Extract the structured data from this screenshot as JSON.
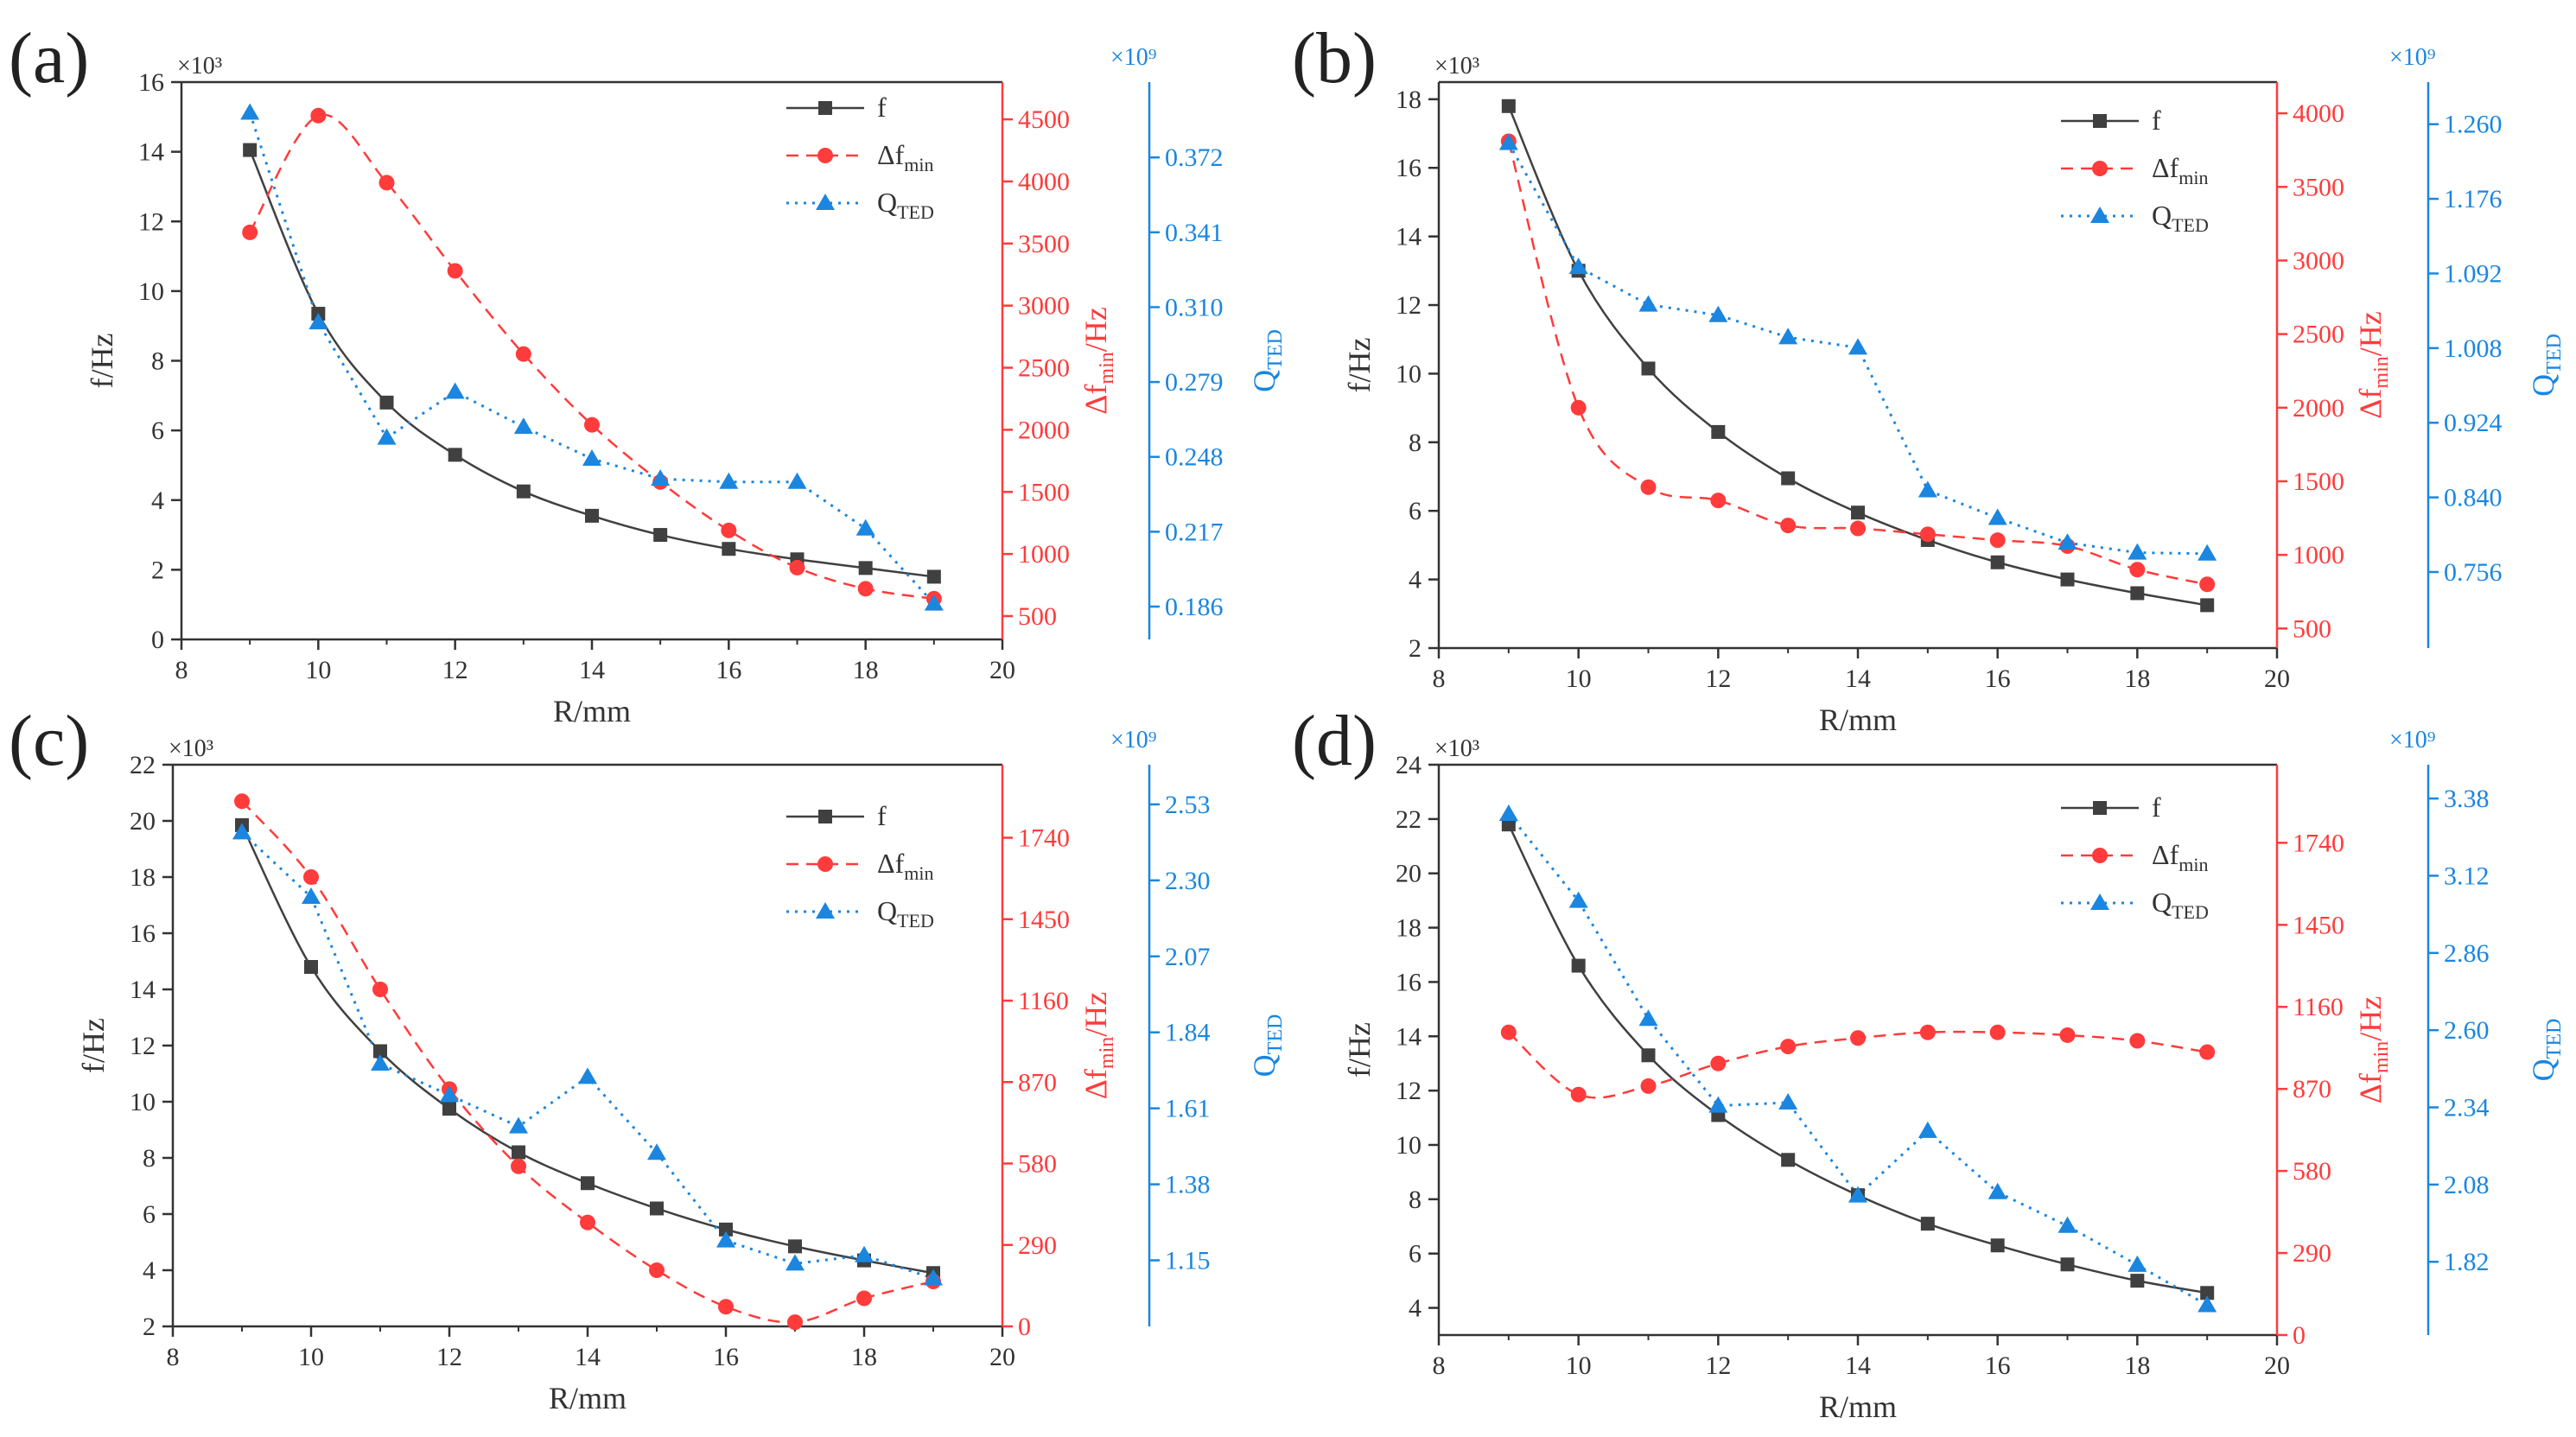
{
  "figure": {
    "description_panels": [
      "(a)",
      "(b)",
      "(c)",
      "(d)"
    ]
  },
  "colors": {
    "f": "#404040",
    "dfmin": "#ff3b3b",
    "qted": "#1a86e0",
    "axis": "#333333"
  },
  "legend": {
    "f": "f",
    "dfmin_main": "Δf",
    "dfmin_sub": "min",
    "qted_main": "Q",
    "qted_sub": "TED"
  },
  "chart_data": [
    {
      "panel": "(a)",
      "type": "line",
      "xlabel": "R/mm",
      "ylabel_left": "f/Hz",
      "ylabel_right1_main": "Δf",
      "ylabel_right1_sub": "min",
      "ylabel_right1_unit": "/Hz",
      "ylabel_right2_main": "Q",
      "ylabel_right2_sub": "TED",
      "left_multiplier": "×10³",
      "right2_multiplier": "×10⁹",
      "xlim": [
        8,
        20
      ],
      "xticks": [
        8,
        10,
        12,
        14,
        16,
        18,
        20
      ],
      "left_ylim": [
        0,
        16
      ],
      "left_yticks": [
        0,
        2,
        4,
        6,
        8,
        10,
        12,
        14,
        16
      ],
      "right1_ylim": [
        312,
        4800
      ],
      "right1_yticks": [
        500,
        1000,
        1500,
        2000,
        2500,
        3000,
        3500,
        4000,
        4500
      ],
      "right2_ylim": [
        0.1724,
        0.4032
      ],
      "right2_yticks": [
        "0.186",
        "0.217",
        "0.248",
        "0.279",
        "0.310",
        "0.341",
        "0.372"
      ],
      "x": [
        9,
        10,
        11,
        12,
        13,
        14,
        15,
        16,
        17,
        18,
        19
      ],
      "series": [
        {
          "name": "f",
          "values": [
            14.05,
            9.35,
            6.8,
            5.3,
            4.25,
            3.55,
            3.0,
            2.6,
            2.3,
            2.05,
            1.8
          ]
        },
        {
          "name": "Δfmin",
          "values": [
            3590,
            4530,
            3990,
            3280,
            2610,
            2040,
            1580,
            1190,
            890,
            720,
            640
          ]
        },
        {
          "name": "QTED",
          "values": [
            0.3905,
            0.3037,
            0.2559,
            0.2749,
            0.2604,
            0.2472,
            0.2389,
            0.2376,
            0.2376,
            0.2183,
            0.1872
          ]
        }
      ]
    },
    {
      "panel": "(b)",
      "type": "line",
      "xlabel": "R/mm",
      "ylabel_left": "f/Hz",
      "ylabel_right1_main": "Δf",
      "ylabel_right1_sub": "min",
      "ylabel_right1_unit": "/Hz",
      "ylabel_right2_main": "Q",
      "ylabel_right2_sub": "TED",
      "left_multiplier": "×10³",
      "right2_multiplier": "×10⁹",
      "xlim": [
        8,
        20
      ],
      "xticks": [
        8,
        10,
        12,
        14,
        16,
        18,
        20
      ],
      "left_ylim": [
        2,
        18.5
      ],
      "left_yticks": [
        2,
        4,
        6,
        8,
        10,
        12,
        14,
        16,
        18
      ],
      "right1_ylim": [
        367,
        4212
      ],
      "right1_yticks": [
        500,
        1000,
        1500,
        2000,
        2500,
        3000,
        3500,
        4000
      ],
      "right2_ylim": [
        0.6704,
        1.3074
      ],
      "right2_yticks": [
        "0.756",
        "0.840",
        "0.924",
        "1.008",
        "1.092",
        "1.176",
        "1.260"
      ],
      "x": [
        9,
        10,
        11,
        12,
        13,
        14,
        15,
        16,
        17,
        18,
        19
      ],
      "series": [
        {
          "name": "f",
          "values": [
            17.8,
            13.0,
            10.15,
            8.3,
            6.95,
            5.95,
            5.15,
            4.5,
            4.0,
            3.6,
            3.25
          ]
        },
        {
          "name": "Δfmin",
          "values": [
            3810,
            2000,
            1460,
            1370,
            1200,
            1180,
            1140,
            1100,
            1060,
            900,
            800
          ]
        },
        {
          "name": "QTED",
          "values": [
            1.2387,
            1.0992,
            1.0569,
            1.0451,
            1.0202,
            1.0085,
            0.8479,
            0.8168,
            0.7889,
            0.7778,
            0.7766
          ]
        }
      ]
    },
    {
      "panel": "(c)",
      "type": "line",
      "xlabel": "R/mm",
      "ylabel_left": "f/Hz",
      "ylabel_right1_main": "Δf",
      "ylabel_right1_sub": "min",
      "ylabel_right1_unit": "/Hz",
      "ylabel_right2_main": "Q",
      "ylabel_right2_sub": "TED",
      "left_multiplier": "×10³",
      "right2_multiplier": "×10⁹",
      "xlim": [
        8,
        20
      ],
      "xticks": [
        8,
        10,
        12,
        14,
        16,
        18,
        20
      ],
      "left_ylim": [
        2,
        22
      ],
      "left_yticks": [
        2,
        4,
        6,
        8,
        10,
        12,
        14,
        16,
        18,
        20,
        22
      ],
      "right1_ylim": [
        0,
        2000
      ],
      "right1_yticks": [
        0,
        290,
        580,
        870,
        1160,
        1450,
        1740
      ],
      "right2_ylim": [
        0.95,
        2.65
      ],
      "right2_yticks": [
        "1.15",
        "1.38",
        "1.61",
        "1.84",
        "2.07",
        "2.30",
        "2.53"
      ],
      "x": [
        9,
        10,
        11,
        12,
        13,
        14,
        15,
        16,
        17,
        18,
        19
      ],
      "series": [
        {
          "name": "f",
          "values": [
            19.85,
            14.8,
            11.8,
            9.75,
            8.2,
            7.1,
            6.2,
            5.45,
            4.85,
            4.35,
            3.9
          ]
        },
        {
          "name": "Δfmin",
          "values": [
            1870,
            1600,
            1200,
            845,
            570,
            370,
            200,
            70,
            15,
            100,
            160
          ]
        },
        {
          "name": "QTED",
          "values": [
            2.445,
            2.25,
            1.745,
            1.65,
            1.555,
            1.705,
            1.475,
            1.21,
            1.14,
            1.165,
            1.095
          ]
        }
      ]
    },
    {
      "panel": "(d)",
      "type": "line",
      "xlabel": "R/mm",
      "ylabel_left": "f/Hz",
      "ylabel_right1_main": "Δf",
      "ylabel_right1_sub": "min",
      "ylabel_right1_unit": "/Hz",
      "ylabel_right2_main": "Q",
      "ylabel_right2_sub": "TED",
      "left_multiplier": "×10³",
      "right2_multiplier": "×10⁹",
      "xlim": [
        8,
        20
      ],
      "xticks": [
        8,
        10,
        12,
        14,
        16,
        18,
        20
      ],
      "left_ylim": [
        3,
        24
      ],
      "left_yticks": [
        4,
        6,
        8,
        10,
        12,
        14,
        16,
        18,
        20,
        22,
        24
      ],
      "right1_ylim": [
        0,
        2016
      ],
      "right1_yticks": [
        0,
        290,
        580,
        870,
        1160,
        1450,
        1740
      ],
      "right2_ylim": [
        1.5734,
        3.4938
      ],
      "right2_yticks": [
        "1.82",
        "2.08",
        "2.34",
        "2.60",
        "2.86",
        "3.12",
        "3.38"
      ],
      "x": [
        9,
        10,
        11,
        12,
        13,
        14,
        15,
        16,
        17,
        18,
        19
      ],
      "series": [
        {
          "name": "f",
          "values": [
            21.8,
            16.6,
            13.3,
            11.1,
            9.45,
            8.15,
            7.1,
            6.3,
            5.6,
            5.0,
            4.55
          ]
        },
        {
          "name": "Δfmin",
          "values": [
            1070,
            850,
            880,
            960,
            1020,
            1050,
            1070,
            1070,
            1060,
            1040,
            1000
          ]
        },
        {
          "name": "QTED",
          "values": [
            3.3281,
            3.0352,
            2.6375,
            2.3457,
            2.3562,
            2.0431,
            2.2603,
            2.0542,
            1.9406,
            1.8094,
            1.6739
          ]
        }
      ]
    }
  ]
}
